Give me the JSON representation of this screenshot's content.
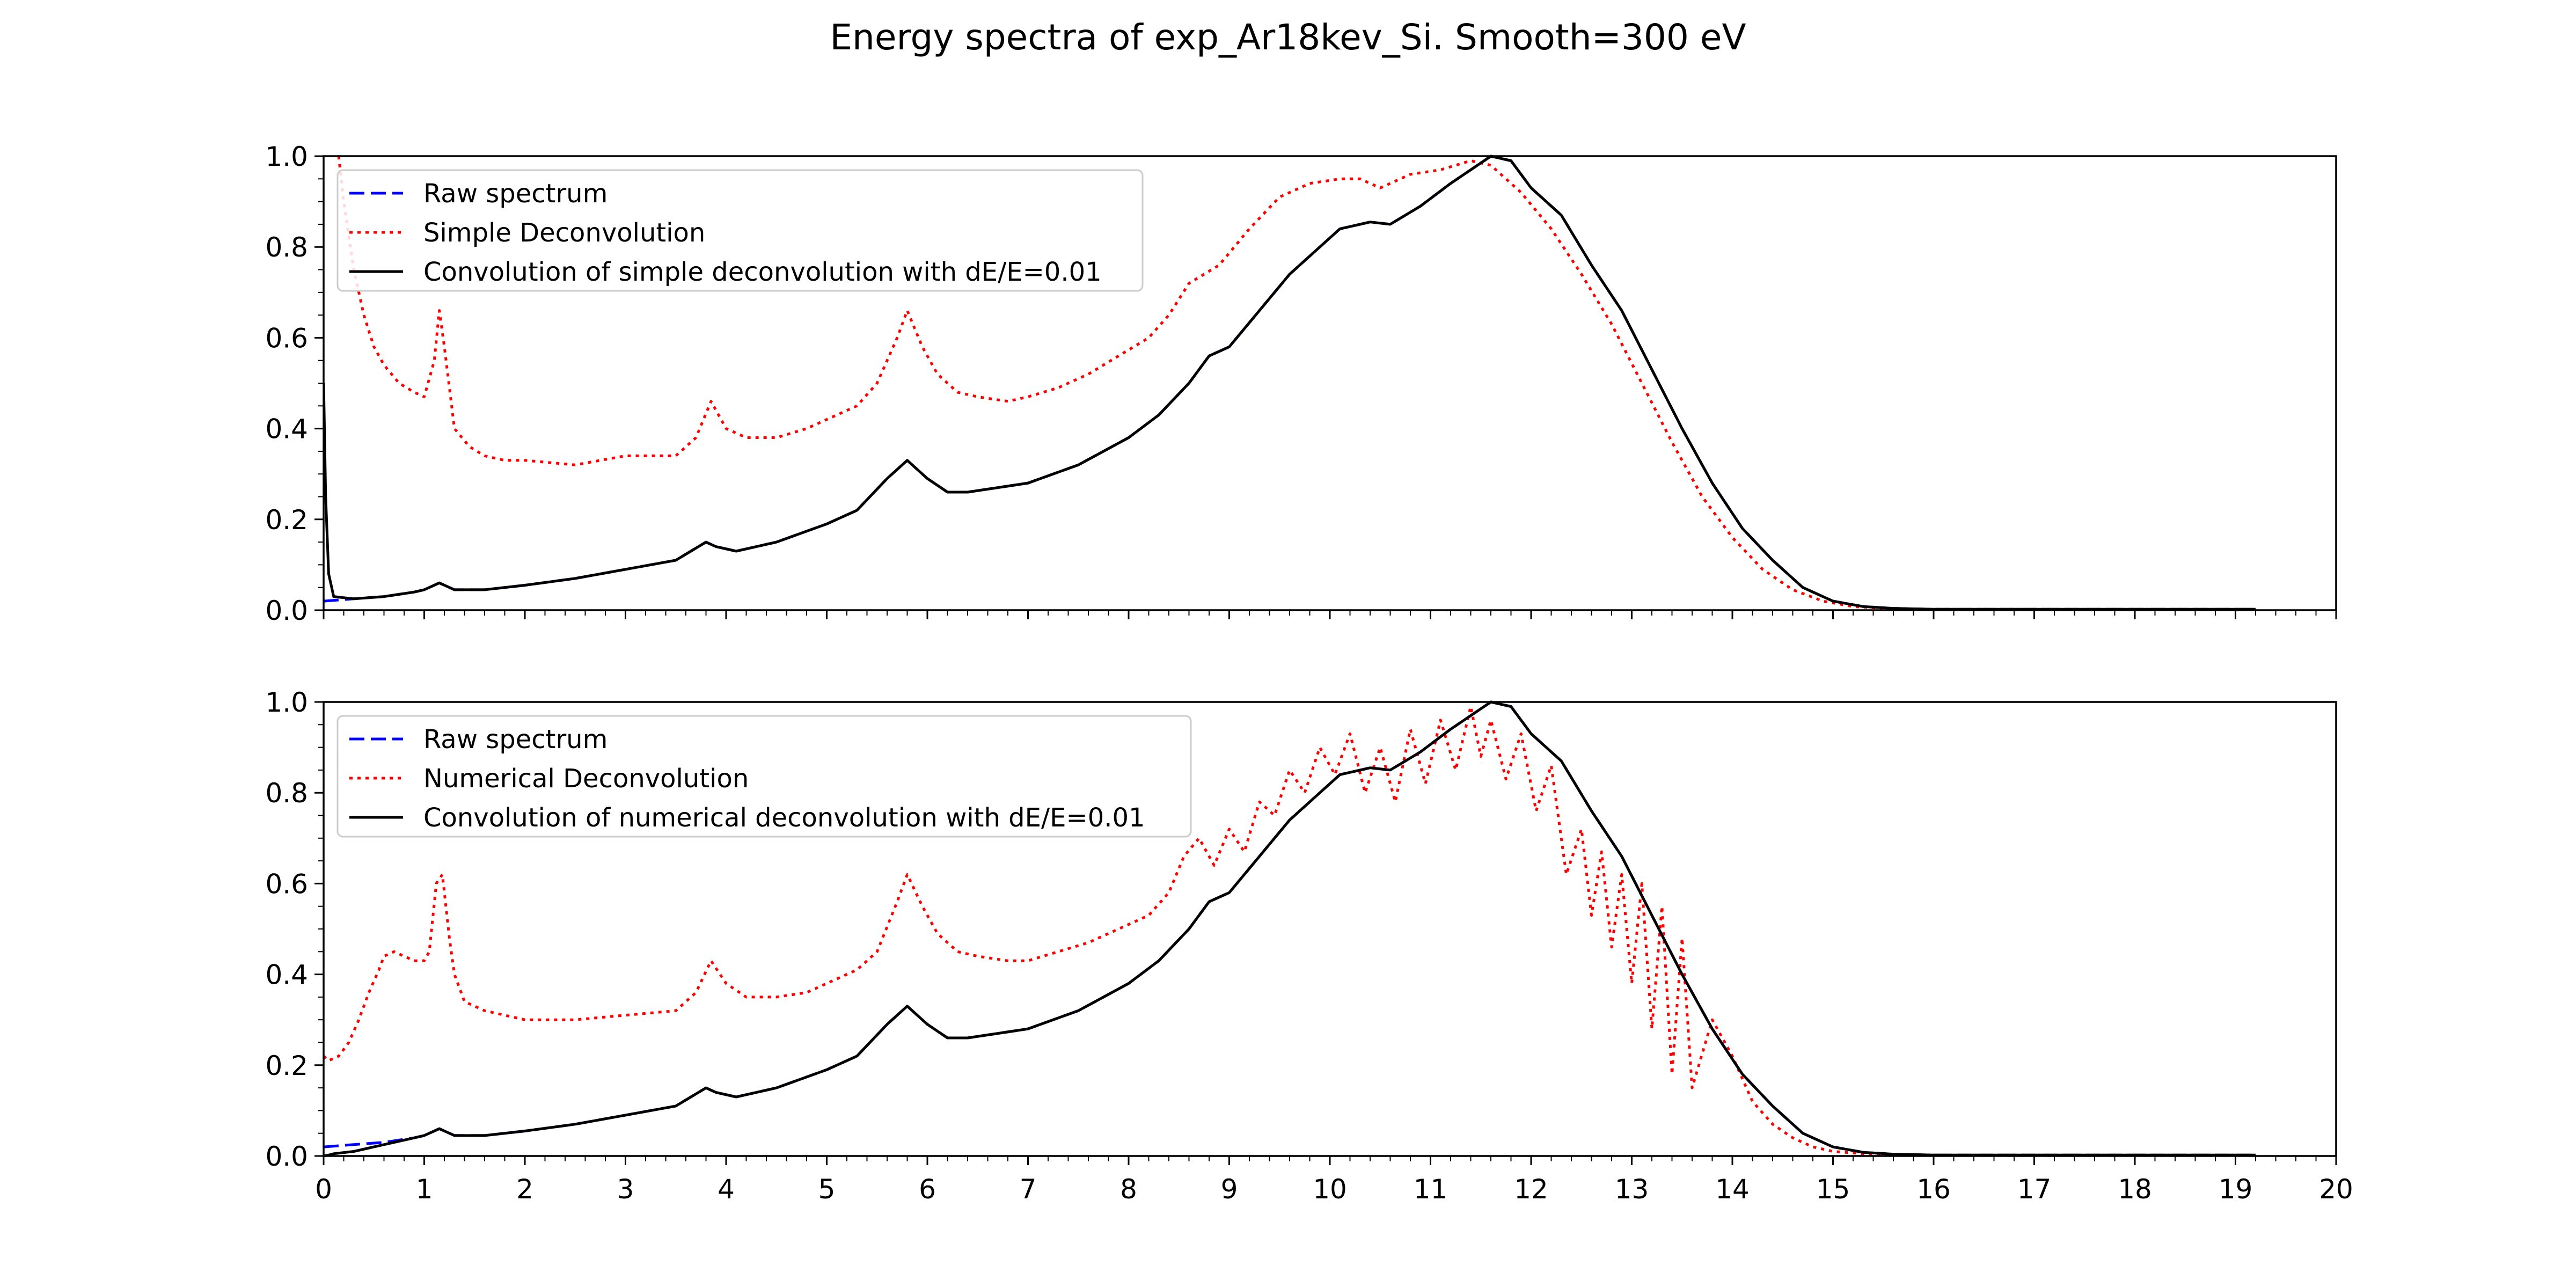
{
  "figure": {
    "title": "Energy spectra of exp_Ar18kev_Si. Smooth=300 eV",
    "colors": {
      "raw": "#0000ff",
      "deconv": "#ff0000",
      "conv": "#000000",
      "frame": "#000000"
    }
  },
  "chart_data": [
    {
      "type": "line",
      "title": "",
      "xlabel": "",
      "ylabel": "",
      "xlim": [
        0,
        20
      ],
      "ylim": [
        0,
        1
      ],
      "xticks": [
        "0",
        "1",
        "2",
        "3",
        "4",
        "5",
        "6",
        "7",
        "8",
        "9",
        "10",
        "11",
        "12",
        "13",
        "14",
        "15",
        "16",
        "17",
        "18",
        "19",
        "20"
      ],
      "yticks": [
        "0.0",
        "0.2",
        "0.4",
        "0.6",
        "0.8",
        "1.0"
      ],
      "show_xtick_labels": false,
      "grid": false,
      "legend_position": "upper-left",
      "series": [
        {
          "name": "Raw spectrum",
          "color": "#0000ff",
          "style": "dashed",
          "x": [
            0,
            0.3,
            0.6,
            0.9,
            1.0,
            1.15,
            1.3,
            1.6,
            2.0,
            2.5,
            3.0,
            3.5,
            3.8,
            3.9,
            4.1,
            4.5,
            5.0,
            5.3,
            5.6,
            5.8,
            6.0,
            6.2,
            6.4,
            6.7,
            7.0,
            7.5,
            8.0,
            8.3,
            8.6,
            8.8,
            9.0,
            9.3,
            9.6,
            9.9,
            10.1,
            10.4,
            10.6,
            10.9,
            11.2,
            11.4,
            11.6,
            11.8,
            12.0,
            12.3,
            12.6,
            12.9,
            13.2,
            13.5,
            13.8,
            14.1,
            14.4,
            14.7,
            15.0,
            15.3,
            15.6,
            16.0,
            17.0,
            18.0,
            19.2
          ],
          "y": [
            0.02,
            0.025,
            0.03,
            0.04,
            0.045,
            0.06,
            0.045,
            0.045,
            0.055,
            0.07,
            0.09,
            0.11,
            0.15,
            0.14,
            0.13,
            0.15,
            0.19,
            0.22,
            0.29,
            0.33,
            0.29,
            0.26,
            0.26,
            0.27,
            0.28,
            0.32,
            0.38,
            0.43,
            0.5,
            0.56,
            0.58,
            0.66,
            0.74,
            0.8,
            0.84,
            0.855,
            0.85,
            0.89,
            0.94,
            0.97,
            1.0,
            0.99,
            0.93,
            0.87,
            0.76,
            0.66,
            0.53,
            0.4,
            0.28,
            0.18,
            0.11,
            0.05,
            0.02,
            0.008,
            0.004,
            0.002,
            0.002,
            0.002,
            0.002
          ]
        },
        {
          "name": "Simple Deconvolution",
          "color": "#ff0000",
          "style": "dotted",
          "x": [
            0.15,
            0.2,
            0.3,
            0.4,
            0.5,
            0.6,
            0.75,
            0.9,
            1.0,
            1.1,
            1.15,
            1.2,
            1.3,
            1.45,
            1.6,
            1.8,
            2.0,
            2.5,
            3.0,
            3.5,
            3.7,
            3.85,
            4.0,
            4.2,
            4.5,
            4.8,
            5.0,
            5.3,
            5.5,
            5.7,
            5.8,
            5.95,
            6.1,
            6.3,
            6.5,
            6.8,
            7.0,
            7.3,
            7.6,
            7.9,
            8.2,
            8.4,
            8.6,
            8.9,
            9.2,
            9.5,
            9.8,
            10.1,
            10.3,
            10.5,
            10.8,
            11.1,
            11.4,
            11.6,
            11.9,
            12.2,
            12.5,
            12.8,
            13.1,
            13.4,
            13.7,
            14.0,
            14.3,
            14.6,
            14.9,
            15.2,
            15.5,
            16.0,
            17.0,
            18.0,
            19.2
          ],
          "y": [
            1.0,
            0.9,
            0.75,
            0.65,
            0.58,
            0.54,
            0.5,
            0.48,
            0.47,
            0.55,
            0.66,
            0.58,
            0.4,
            0.36,
            0.34,
            0.33,
            0.33,
            0.32,
            0.34,
            0.34,
            0.38,
            0.46,
            0.4,
            0.38,
            0.38,
            0.4,
            0.42,
            0.45,
            0.5,
            0.6,
            0.66,
            0.58,
            0.52,
            0.48,
            0.47,
            0.46,
            0.47,
            0.49,
            0.52,
            0.56,
            0.6,
            0.65,
            0.72,
            0.76,
            0.84,
            0.91,
            0.94,
            0.95,
            0.95,
            0.93,
            0.96,
            0.97,
            0.99,
            0.98,
            0.92,
            0.84,
            0.74,
            0.63,
            0.5,
            0.37,
            0.25,
            0.16,
            0.09,
            0.045,
            0.02,
            0.008,
            0.004,
            0.002,
            0.002,
            0.002,
            0.002
          ]
        },
        {
          "name": "Convolution of simple deconvolution with dE/E=0.01",
          "color": "#000000",
          "style": "solid",
          "x": [
            0.0,
            0.02,
            0.05,
            0.1,
            0.3,
            0.6,
            0.9,
            1.0,
            1.15,
            1.3,
            1.6,
            2.0,
            2.5,
            3.0,
            3.5,
            3.8,
            3.9,
            4.1,
            4.5,
            5.0,
            5.3,
            5.6,
            5.8,
            6.0,
            6.2,
            6.4,
            6.7,
            7.0,
            7.5,
            8.0,
            8.3,
            8.6,
            8.8,
            9.0,
            9.3,
            9.6,
            9.9,
            10.1,
            10.4,
            10.6,
            10.9,
            11.2,
            11.4,
            11.6,
            11.8,
            12.0,
            12.3,
            12.6,
            12.9,
            13.2,
            13.5,
            13.8,
            14.1,
            14.4,
            14.7,
            15.0,
            15.3,
            15.6,
            16.0,
            17.0,
            18.0,
            19.2
          ],
          "y": [
            0.5,
            0.25,
            0.08,
            0.03,
            0.025,
            0.03,
            0.04,
            0.045,
            0.06,
            0.045,
            0.045,
            0.055,
            0.07,
            0.09,
            0.11,
            0.15,
            0.14,
            0.13,
            0.15,
            0.19,
            0.22,
            0.29,
            0.33,
            0.29,
            0.26,
            0.26,
            0.27,
            0.28,
            0.32,
            0.38,
            0.43,
            0.5,
            0.56,
            0.58,
            0.66,
            0.74,
            0.8,
            0.84,
            0.855,
            0.85,
            0.89,
            0.94,
            0.97,
            1.0,
            0.99,
            0.93,
            0.87,
            0.76,
            0.66,
            0.53,
            0.4,
            0.28,
            0.18,
            0.11,
            0.05,
            0.02,
            0.008,
            0.004,
            0.002,
            0.002,
            0.002,
            0.002
          ]
        }
      ]
    },
    {
      "type": "line",
      "title": "",
      "xlabel": "",
      "ylabel": "",
      "xlim": [
        0,
        20
      ],
      "ylim": [
        0,
        1
      ],
      "xticks": [
        "0",
        "1",
        "2",
        "3",
        "4",
        "5",
        "6",
        "7",
        "8",
        "9",
        "10",
        "11",
        "12",
        "13",
        "14",
        "15",
        "16",
        "17",
        "18",
        "19",
        "20"
      ],
      "yticks": [
        "0.0",
        "0.2",
        "0.4",
        "0.6",
        "0.8",
        "1.0"
      ],
      "show_xtick_labels": true,
      "grid": false,
      "legend_position": "upper-left",
      "series": [
        {
          "name": "Raw spectrum",
          "color": "#0000ff",
          "style": "dashed",
          "x": [
            0,
            0.3,
            0.6,
            0.9,
            1.0,
            1.15,
            1.3,
            1.6,
            2.0,
            2.5,
            3.0,
            3.5,
            3.8,
            3.9,
            4.1,
            4.5,
            5.0,
            5.3,
            5.6,
            5.8,
            6.0,
            6.2,
            6.4,
            6.7,
            7.0,
            7.5,
            8.0,
            8.3,
            8.6,
            8.8,
            9.0,
            9.3,
            9.6,
            9.9,
            10.1,
            10.4,
            10.6,
            10.9,
            11.2,
            11.4,
            11.6,
            11.8,
            12.0,
            12.3,
            12.6,
            12.9,
            13.2,
            13.5,
            13.8,
            14.1,
            14.4,
            14.7,
            15.0,
            15.3,
            15.6,
            16.0,
            17.0,
            18.0,
            19.2
          ],
          "y": [
            0.02,
            0.025,
            0.03,
            0.04,
            0.045,
            0.06,
            0.045,
            0.045,
            0.055,
            0.07,
            0.09,
            0.11,
            0.15,
            0.14,
            0.13,
            0.15,
            0.19,
            0.22,
            0.29,
            0.33,
            0.29,
            0.26,
            0.26,
            0.27,
            0.28,
            0.32,
            0.38,
            0.43,
            0.5,
            0.56,
            0.58,
            0.66,
            0.74,
            0.8,
            0.84,
            0.855,
            0.85,
            0.89,
            0.94,
            0.97,
            1.0,
            0.99,
            0.93,
            0.87,
            0.76,
            0.66,
            0.53,
            0.4,
            0.28,
            0.18,
            0.11,
            0.05,
            0.02,
            0.008,
            0.004,
            0.002,
            0.002,
            0.002,
            0.002
          ]
        },
        {
          "name": "Numerical Deconvolution",
          "color": "#ff0000",
          "style": "dotted",
          "x": [
            0.0,
            0.05,
            0.15,
            0.25,
            0.35,
            0.45,
            0.55,
            0.6,
            0.7,
            0.8,
            0.9,
            1.0,
            1.05,
            1.12,
            1.18,
            1.25,
            1.3,
            1.4,
            1.6,
            1.8,
            2.0,
            2.5,
            3.0,
            3.5,
            3.7,
            3.85,
            4.0,
            4.2,
            4.5,
            4.8,
            5.0,
            5.3,
            5.5,
            5.7,
            5.8,
            5.95,
            6.1,
            6.3,
            6.5,
            6.8,
            7.0,
            7.3,
            7.6,
            7.9,
            8.2,
            8.4,
            8.55,
            8.7,
            8.85,
            9.0,
            9.15,
            9.3,
            9.45,
            9.6,
            9.75,
            9.9,
            10.05,
            10.2,
            10.35,
            10.5,
            10.65,
            10.8,
            10.95,
            11.1,
            11.25,
            11.4,
            11.5,
            11.6,
            11.75,
            11.9,
            12.05,
            12.2,
            12.35,
            12.5,
            12.6,
            12.7,
            12.8,
            12.9,
            13.0,
            13.1,
            13.2,
            13.3,
            13.4,
            13.5,
            13.6,
            13.8,
            14.0,
            14.2,
            14.4,
            14.6,
            14.8,
            15.0,
            15.3,
            15.6,
            16.0,
            17.0,
            18.0,
            19.2
          ],
          "y": [
            0.22,
            0.21,
            0.22,
            0.25,
            0.3,
            0.36,
            0.41,
            0.44,
            0.45,
            0.44,
            0.43,
            0.43,
            0.45,
            0.6,
            0.62,
            0.48,
            0.4,
            0.34,
            0.32,
            0.31,
            0.3,
            0.3,
            0.31,
            0.32,
            0.36,
            0.43,
            0.38,
            0.35,
            0.35,
            0.36,
            0.38,
            0.41,
            0.45,
            0.56,
            0.62,
            0.55,
            0.49,
            0.45,
            0.44,
            0.43,
            0.43,
            0.45,
            0.47,
            0.5,
            0.53,
            0.58,
            0.66,
            0.7,
            0.64,
            0.72,
            0.67,
            0.78,
            0.75,
            0.85,
            0.8,
            0.9,
            0.84,
            0.93,
            0.8,
            0.9,
            0.78,
            0.94,
            0.82,
            0.96,
            0.85,
            0.99,
            0.88,
            0.96,
            0.83,
            0.93,
            0.76,
            0.86,
            0.62,
            0.72,
            0.53,
            0.67,
            0.46,
            0.62,
            0.38,
            0.6,
            0.28,
            0.55,
            0.18,
            0.48,
            0.15,
            0.3,
            0.22,
            0.12,
            0.07,
            0.04,
            0.02,
            0.01,
            0.005,
            0.003,
            0.002,
            0.002,
            0.002,
            0.002
          ]
        },
        {
          "name": "Convolution of numerical deconvolution with dE/E=0.01",
          "color": "#000000",
          "style": "solid",
          "x": [
            0.0,
            0.05,
            0.1,
            0.3,
            0.6,
            0.9,
            1.0,
            1.15,
            1.3,
            1.6,
            2.0,
            2.5,
            3.0,
            3.5,
            3.8,
            3.9,
            4.1,
            4.5,
            5.0,
            5.3,
            5.6,
            5.8,
            6.0,
            6.2,
            6.4,
            6.7,
            7.0,
            7.5,
            8.0,
            8.3,
            8.6,
            8.8,
            9.0,
            9.3,
            9.6,
            9.9,
            10.1,
            10.4,
            10.6,
            10.9,
            11.2,
            11.4,
            11.6,
            11.8,
            12.0,
            12.3,
            12.6,
            12.9,
            13.2,
            13.5,
            13.8,
            14.1,
            14.4,
            14.7,
            15.0,
            15.3,
            15.6,
            16.0,
            17.0,
            18.0,
            19.2
          ],
          "y": [
            0.0,
            0.002,
            0.005,
            0.01,
            0.025,
            0.04,
            0.045,
            0.06,
            0.045,
            0.045,
            0.055,
            0.07,
            0.09,
            0.11,
            0.15,
            0.14,
            0.13,
            0.15,
            0.19,
            0.22,
            0.29,
            0.33,
            0.29,
            0.26,
            0.26,
            0.27,
            0.28,
            0.32,
            0.38,
            0.43,
            0.5,
            0.56,
            0.58,
            0.66,
            0.74,
            0.8,
            0.84,
            0.855,
            0.85,
            0.89,
            0.94,
            0.97,
            1.0,
            0.99,
            0.93,
            0.87,
            0.76,
            0.66,
            0.53,
            0.4,
            0.28,
            0.18,
            0.11,
            0.05,
            0.02,
            0.008,
            0.004,
            0.002,
            0.002,
            0.002,
            0.002
          ]
        }
      ]
    }
  ]
}
